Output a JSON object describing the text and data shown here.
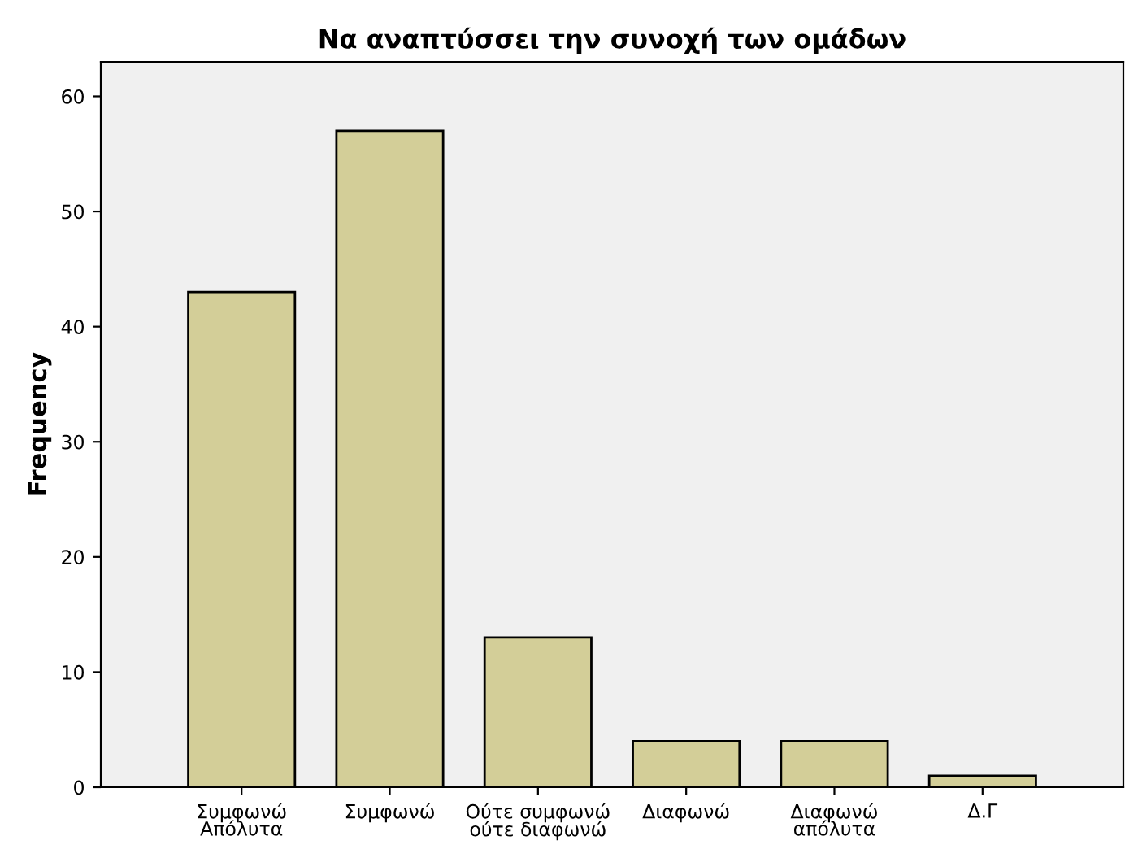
{
  "chart_data": {
    "type": "bar",
    "title": "Να αναπτύσσει την συνοχή των ομάδων",
    "ylabel": "Frequency",
    "categories": [
      "Συμφωνώ\nΑπόλυτα",
      "Συμφωνώ",
      "Ούτε συμφωνώ\nούτε διαφωνώ",
      "Διαφωνώ",
      "Διαφωνώ\nαπόλυτα",
      "Δ.Γ"
    ],
    "values": [
      43,
      57,
      13,
      4,
      4,
      1
    ],
    "color": "#d3ce98",
    "ylim": [
      0,
      63
    ],
    "yticks": [
      0,
      10,
      20,
      30,
      40,
      50,
      60
    ],
    "grid": false
  }
}
